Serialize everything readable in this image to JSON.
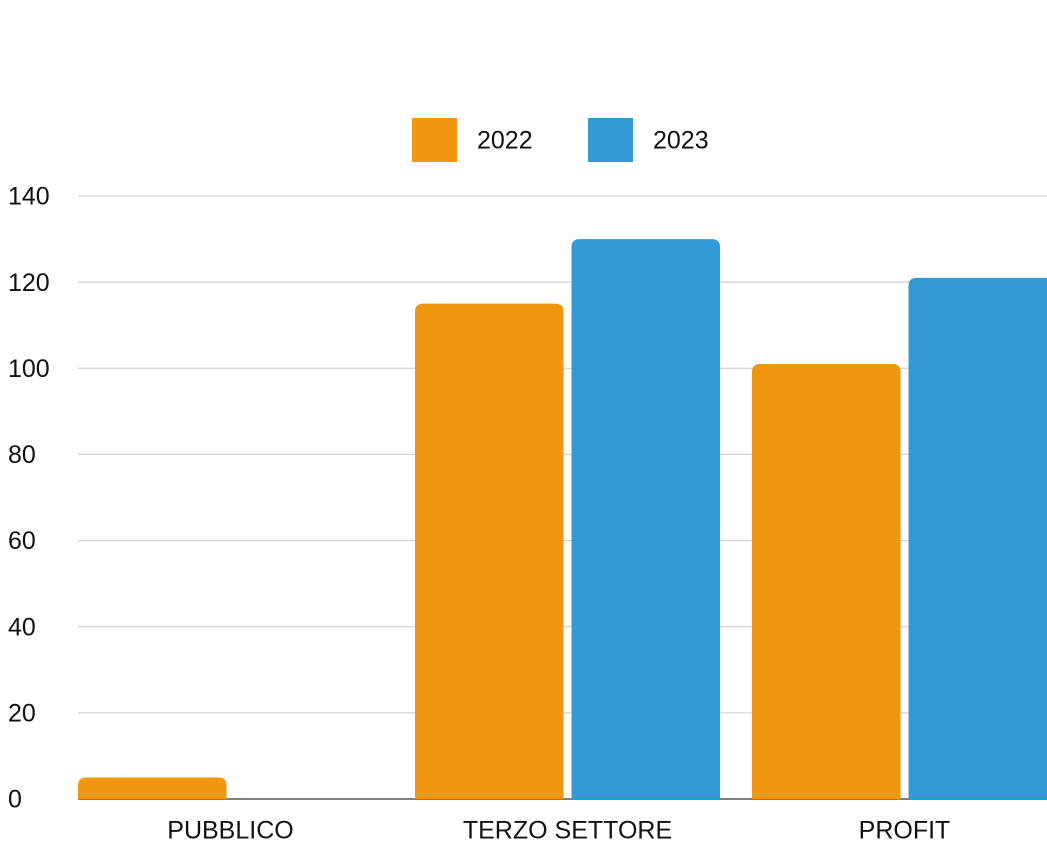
{
  "chart_data": {
    "type": "bar",
    "categories": [
      "PUBBLICO",
      "TERZO SETTORE",
      "PROFIT"
    ],
    "series": [
      {
        "name": "2022",
        "color": "#f0960f",
        "values": [
          5,
          115,
          101
        ]
      },
      {
        "name": "2023",
        "color": "#329bd5",
        "values": [
          0,
          130,
          121
        ]
      }
    ],
    "ylim": [
      0,
      140
    ],
    "yticks": [
      0,
      20,
      40,
      60,
      80,
      100,
      120,
      140
    ],
    "grid": true,
    "legend": "top"
  }
}
